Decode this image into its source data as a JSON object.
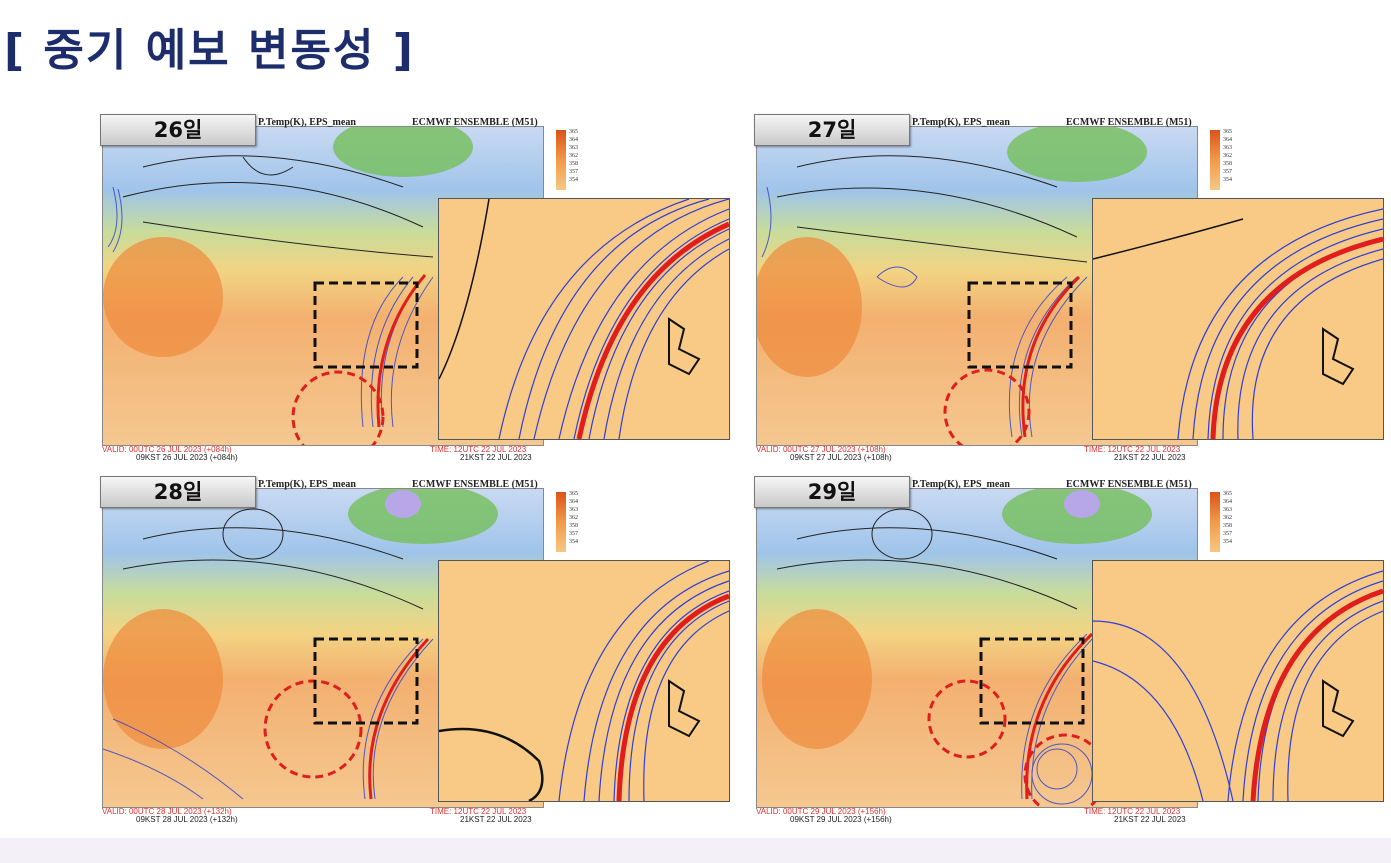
{
  "slide": {
    "title": "[ 중기 예보 변동성 ]"
  },
  "panels": [
    {
      "day": "26일",
      "header_left": "P.Temp(K), EPS_mean",
      "header_right": "ECMWF ENSEMBLE (M51)",
      "valid": "VALID: 00UTC 26 JUL 2023 (+084h)",
      "valid_kst": "09KST 26 JUL 2023 (+084h)",
      "time": "TIME: 12UTC 22 JUL 2023",
      "time_kst": "21KST 22 JUL 2023"
    },
    {
      "day": "27일",
      "header_left": "P.Temp(K), EPS_mean",
      "header_right": "ECMWF ENSEMBLE (M51)",
      "valid": "VALID: 00UTC 27 JUL 2023 (+108h)",
      "valid_kst": "09KST 27 JUL 2023 (+108h)",
      "time": "TIME: 12UTC 22 JUL 2023",
      "time_kst": "21KST 22 JUL 2023"
    },
    {
      "day": "28일",
      "header_left": "P.Temp(K), EPS_mean",
      "header_right": "ECMWF ENSEMBLE (M51)",
      "valid": "VALID: 00UTC 28 JUL 2023 (+132h)",
      "valid_kst": "09KST 28 JUL 2023 (+132h)",
      "time": "TIME: 12UTC 22 JUL 2023",
      "time_kst": "21KST 22 JUL 2023"
    },
    {
      "day": "29일",
      "header_left": "P.Temp(K), EPS_mean",
      "header_right": "ECMWF ENSEMBLE (M51)",
      "valid": "VALID: 00UTC 29 JUL 2023 (+156h)",
      "valid_kst": "09KST 29 JUL 2023 (+156h)",
      "time": "TIME: 12UTC 22 JUL 2023",
      "time_kst": "21KST 22 JUL 2023"
    }
  ],
  "colorbar_ticks": [
    "365",
    "364",
    "363",
    "362",
    "358",
    "357",
    "354"
  ],
  "colors": {
    "title": "#1d2d6b",
    "ensemble_line": "#2f3fd6",
    "mean_line": "#e01e1e",
    "valid_text": "#e53030"
  }
}
